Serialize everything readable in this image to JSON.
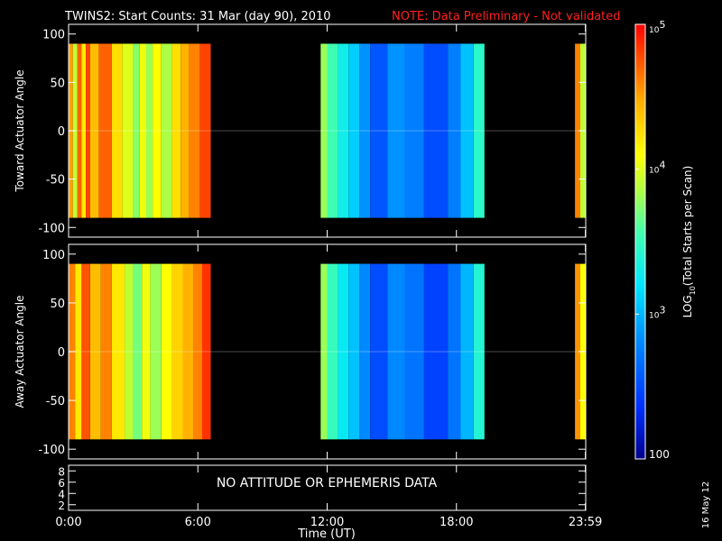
{
  "header": {
    "title": "TWINS2: Start Counts: 31 Mar (day  90), 2010",
    "note": "NOTE: Data Preliminary - Not validated",
    "title_color": "#ffffff",
    "note_color": "#ff2020"
  },
  "footer": {
    "date_stamp": "16 May 12"
  },
  "chart_data": [
    {
      "type": "heatmap",
      "name": "toward-panel",
      "ylabel": "Toward Actuator Angle",
      "ylim": [
        -110,
        110
      ],
      "yticks": [
        100,
        50,
        0,
        -50,
        -100
      ],
      "ytick_labels": [
        "100",
        "50",
        "0",
        "-50",
        "-100"
      ],
      "x_unit": "hours UT",
      "xlim": [
        0,
        24
      ],
      "data_ylim": [
        -90,
        90
      ],
      "coverage_hours": [
        [
          0,
          6.6
        ],
        [
          11.7,
          19.3
        ],
        [
          23.5,
          24
        ]
      ],
      "colorscale": "log10",
      "columns": [
        {
          "x0": 0.0,
          "x1": 0.2,
          "log": 4.5
        },
        {
          "x0": 0.2,
          "x1": 0.4,
          "log": 3.9
        },
        {
          "x0": 0.4,
          "x1": 0.6,
          "log": 4.7
        },
        {
          "x0": 0.6,
          "x1": 0.8,
          "log": 4.2
        },
        {
          "x0": 0.8,
          "x1": 1.0,
          "log": 4.8
        },
        {
          "x0": 1.0,
          "x1": 1.4,
          "log": 4.4
        },
        {
          "x0": 1.4,
          "x1": 2.0,
          "log": 4.7
        },
        {
          "x0": 2.0,
          "x1": 2.5,
          "log": 4.25
        },
        {
          "x0": 2.5,
          "x1": 3.0,
          "log": 4.0
        },
        {
          "x0": 3.0,
          "x1": 3.3,
          "log": 3.75
        },
        {
          "x0": 3.3,
          "x1": 3.6,
          "log": 4.05
        },
        {
          "x0": 3.6,
          "x1": 3.9,
          "log": 3.8
        },
        {
          "x0": 3.9,
          "x1": 4.3,
          "log": 4.1
        },
        {
          "x0": 4.3,
          "x1": 4.8,
          "log": 3.85
        },
        {
          "x0": 4.8,
          "x1": 5.2,
          "log": 4.25
        },
        {
          "x0": 5.2,
          "x1": 5.6,
          "log": 4.45
        },
        {
          "x0": 5.6,
          "x1": 6.1,
          "log": 4.6
        },
        {
          "x0": 6.1,
          "x1": 6.6,
          "log": 4.8
        },
        {
          "x0": 11.7,
          "x1": 12.0,
          "log": 3.8
        },
        {
          "x0": 12.0,
          "x1": 12.5,
          "log": 3.55
        },
        {
          "x0": 12.5,
          "x1": 13.0,
          "log": 3.3
        },
        {
          "x0": 13.0,
          "x1": 13.5,
          "log": 3.1
        },
        {
          "x0": 13.5,
          "x1": 14.0,
          "log": 2.85
        },
        {
          "x0": 14.0,
          "x1": 14.8,
          "log": 2.55
        },
        {
          "x0": 14.8,
          "x1": 15.6,
          "log": 2.85
        },
        {
          "x0": 15.6,
          "x1": 16.5,
          "log": 2.75
        },
        {
          "x0": 16.5,
          "x1": 17.6,
          "log": 2.5
        },
        {
          "x0": 17.6,
          "x1": 18.2,
          "log": 2.75
        },
        {
          "x0": 18.2,
          "x1": 18.8,
          "log": 3.05
        },
        {
          "x0": 18.8,
          "x1": 19.3,
          "log": 3.45
        },
        {
          "x0": 23.5,
          "x1": 23.75,
          "log": 4.6
        },
        {
          "x0": 23.75,
          "x1": 24.0,
          "log": 3.9
        }
      ]
    },
    {
      "type": "heatmap",
      "name": "away-panel",
      "ylabel": "Away Actuator Angle",
      "ylim": [
        -110,
        110
      ],
      "yticks": [
        100,
        50,
        0,
        -50,
        -100
      ],
      "ytick_labels": [
        "100",
        "50",
        "0",
        "-50",
        "-100"
      ],
      "xlim": [
        0,
        24
      ],
      "data_ylim": [
        -90,
        90
      ],
      "coverage_hours": [
        [
          0,
          6.6
        ],
        [
          11.7,
          19.3
        ],
        [
          23.5,
          24
        ]
      ],
      "colorscale": "log10",
      "columns": [
        {
          "x0": 0.0,
          "x1": 0.3,
          "log": 4.6
        },
        {
          "x0": 0.3,
          "x1": 0.6,
          "log": 4.2
        },
        {
          "x0": 0.6,
          "x1": 1.0,
          "log": 4.75
        },
        {
          "x0": 1.0,
          "x1": 1.5,
          "log": 4.4
        },
        {
          "x0": 1.5,
          "x1": 2.0,
          "log": 4.6
        },
        {
          "x0": 2.0,
          "x1": 2.6,
          "log": 4.2
        },
        {
          "x0": 2.6,
          "x1": 3.0,
          "log": 3.9
        },
        {
          "x0": 3.0,
          "x1": 3.4,
          "log": 3.7
        },
        {
          "x0": 3.4,
          "x1": 3.8,
          "log": 4.05
        },
        {
          "x0": 3.8,
          "x1": 4.3,
          "log": 3.8
        },
        {
          "x0": 4.3,
          "x1": 4.8,
          "log": 4.1
        },
        {
          "x0": 4.8,
          "x1": 5.3,
          "log": 4.3
        },
        {
          "x0": 5.3,
          "x1": 5.8,
          "log": 4.45
        },
        {
          "x0": 5.8,
          "x1": 6.2,
          "log": 4.6
        },
        {
          "x0": 6.2,
          "x1": 6.6,
          "log": 4.85
        },
        {
          "x0": 11.7,
          "x1": 12.0,
          "log": 3.8
        },
        {
          "x0": 12.0,
          "x1": 12.5,
          "log": 3.5
        },
        {
          "x0": 12.5,
          "x1": 13.0,
          "log": 3.25
        },
        {
          "x0": 13.0,
          "x1": 13.5,
          "log": 3.05
        },
        {
          "x0": 13.5,
          "x1": 14.0,
          "log": 2.8
        },
        {
          "x0": 14.0,
          "x1": 14.8,
          "log": 2.5
        },
        {
          "x0": 14.8,
          "x1": 15.6,
          "log": 2.8
        },
        {
          "x0": 15.6,
          "x1": 16.5,
          "log": 2.7
        },
        {
          "x0": 16.5,
          "x1": 17.6,
          "log": 2.45
        },
        {
          "x0": 17.6,
          "x1": 18.2,
          "log": 2.7
        },
        {
          "x0": 18.2,
          "x1": 18.8,
          "log": 3.0
        },
        {
          "x0": 18.8,
          "x1": 19.3,
          "log": 3.4
        },
        {
          "x0": 23.5,
          "x1": 23.75,
          "log": 4.55
        },
        {
          "x0": 23.75,
          "x1": 24.0,
          "log": 4.1
        }
      ]
    },
    {
      "type": "line",
      "name": "attitude-panel",
      "ylim": [
        1,
        9
      ],
      "yticks": [
        8,
        6,
        4,
        2
      ],
      "ytick_labels": [
        "8",
        "6",
        "4",
        "2"
      ],
      "xlim": [
        0,
        24
      ],
      "message": "NO ATTITUDE OR EPHEMERIS DATA"
    }
  ],
  "x_axis": {
    "label": "Time (UT)",
    "ticks": [
      0,
      6,
      12,
      18,
      23.983
    ],
    "tick_labels": [
      "0:00",
      "6:00",
      "12:00",
      "18:00",
      "23:59"
    ]
  },
  "colorbar": {
    "label_prefix": "LOG",
    "label_sub": "10",
    "label_suffix": "(Total Starts per Scan)",
    "range_log": [
      2,
      5
    ],
    "ticks_log": [
      5,
      4,
      3,
      2
    ],
    "tick_labels": [
      {
        "base": "10",
        "exp": "5"
      },
      {
        "base": "10",
        "exp": "4"
      },
      {
        "base": "10",
        "exp": "3"
      },
      {
        "base": "100",
        "exp": ""
      }
    ]
  }
}
